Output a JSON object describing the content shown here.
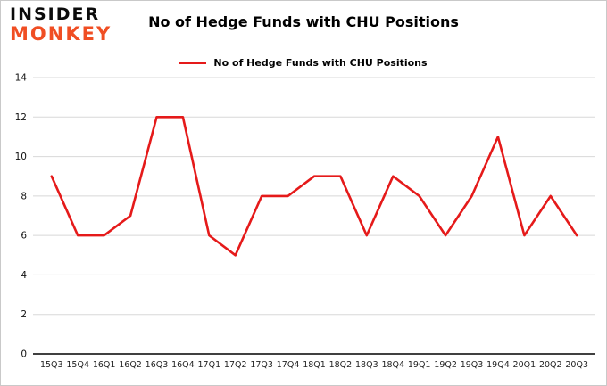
{
  "header": {
    "logo_line1": "INSIDER",
    "logo_line2": "MONKEY",
    "title": "No of Hedge Funds with CHU Positions",
    "legend_label": "No of Hedge Funds with CHU Positions"
  },
  "colors": {
    "line": "#e51a1a",
    "grid": "#d8d8d8",
    "axis": "#000000",
    "logo_red": "#f04e23",
    "logo_black": "#0b0b0b"
  },
  "chart_data": {
    "type": "line",
    "title": "No of Hedge Funds with CHU Positions",
    "xlabel": "",
    "ylabel": "",
    "categories": [
      "15Q3",
      "15Q4",
      "16Q1",
      "16Q2",
      "16Q3",
      "16Q4",
      "17Q1",
      "17Q2",
      "17Q3",
      "17Q4",
      "18Q1",
      "18Q2",
      "18Q3",
      "18Q4",
      "19Q1",
      "19Q2",
      "19Q3",
      "19Q4",
      "20Q1",
      "20Q2",
      "20Q3"
    ],
    "values": [
      9,
      6,
      6,
      7,
      12,
      12,
      6,
      5,
      8,
      8,
      9,
      9,
      6,
      9,
      8,
      6,
      8,
      11,
      6,
      8,
      6
    ],
    "ylim": [
      0,
      14
    ],
    "yticks": [
      0,
      2,
      4,
      6,
      8,
      10,
      12,
      14
    ],
    "grid": true,
    "legend_position": "top",
    "series_color": "#e51a1a"
  }
}
